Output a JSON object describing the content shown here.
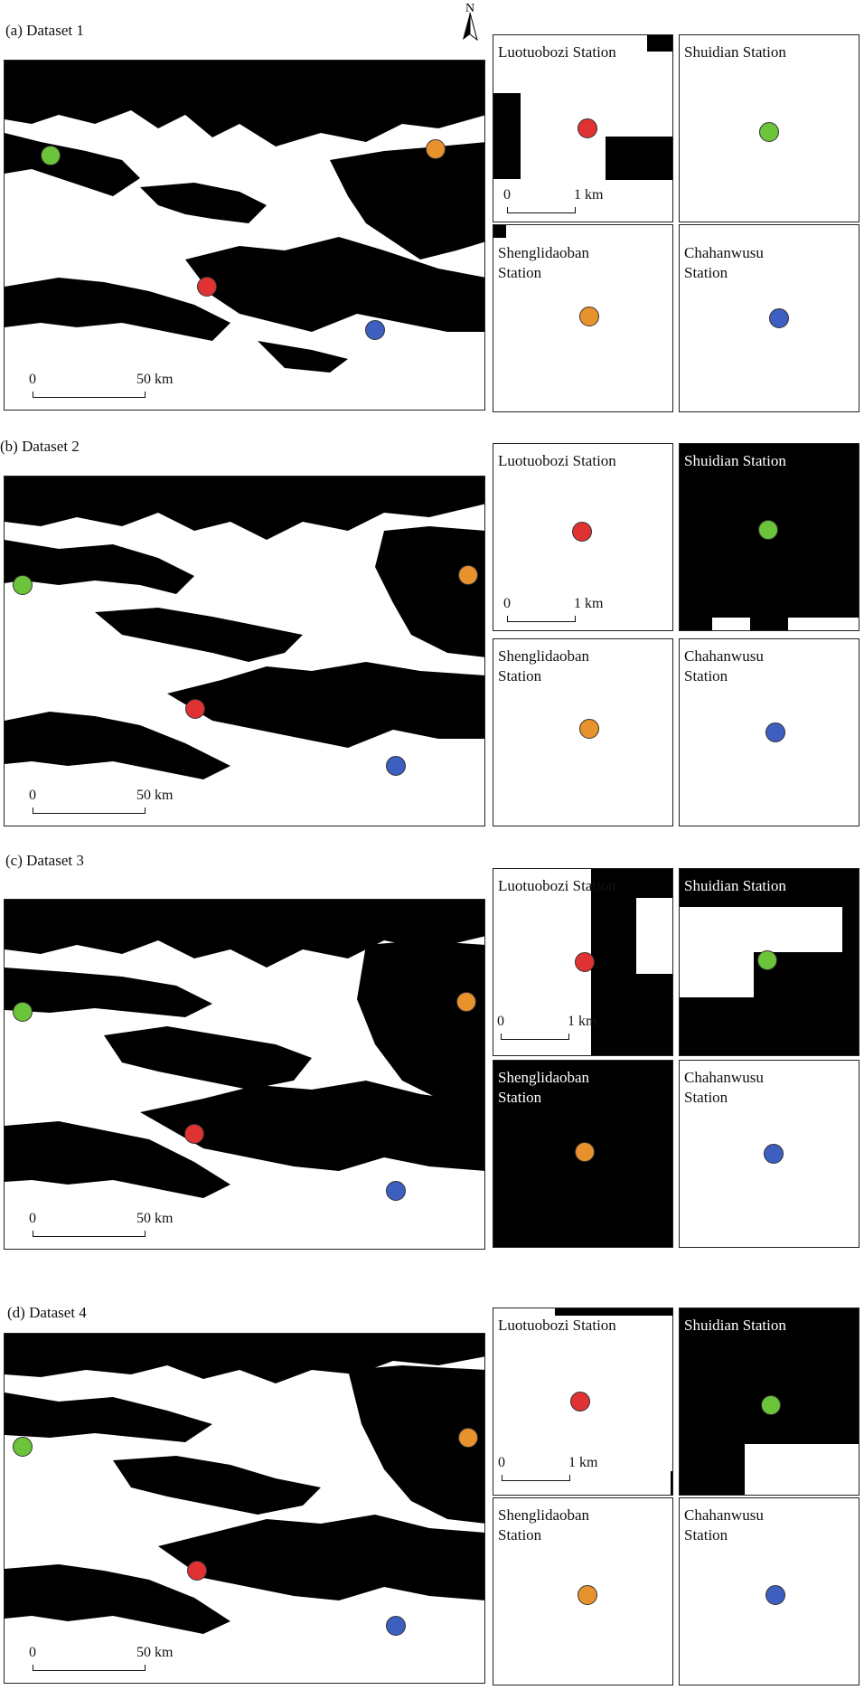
{
  "panels": [
    {
      "label": "(a) Dataset 1",
      "scale_zero": "0",
      "scale_label": "50 km"
    },
    {
      "label": "(b) Dataset 2",
      "scale_zero": "0",
      "scale_label": "50 km"
    },
    {
      "label": "(c) Dataset 3",
      "scale_zero": "0",
      "scale_label": "50 km"
    },
    {
      "label": "(d) Dataset 4",
      "scale_zero": "0",
      "scale_label": "50 km"
    }
  ],
  "stations": {
    "luotuobozi": "Luotuobozi Station",
    "shuidian": "Shuidian Station",
    "shenglidaoban": "Shenglidaoban\nStation",
    "chahanwusu": "Chahanwusu\nStation"
  },
  "inset_scale": {
    "zero": "0",
    "label": "1 km"
  },
  "north_label": "N",
  "colors": {
    "luotuobozi": "#e03232",
    "shuidian": "#6cc43a",
    "shenglidaoban": "#e8922e",
    "chahanwusu": "#3c5fc0",
    "snow": "#ffffff",
    "no_snow": "#000000"
  }
}
